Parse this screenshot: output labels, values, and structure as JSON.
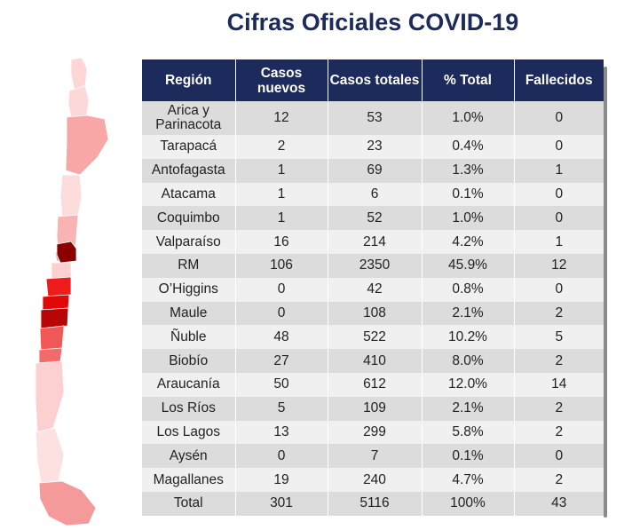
{
  "title": "Cifras Oficiales COVID-19",
  "chart_data": {
    "type": "table",
    "title": "Cifras Oficiales COVID-19",
    "columns": [
      "Región",
      "Casos nuevos",
      "Casos totales",
      "% Total",
      "Fallecidos"
    ],
    "rows": [
      {
        "region": "Arica y Parinacota",
        "nuevos": "12",
        "totales": "53",
        "pct": "1.0%",
        "fallecidos": "0",
        "fill": "#fdd6d6"
      },
      {
        "region": "Tarapacá",
        "nuevos": "2",
        "totales": "23",
        "pct": "0.4%",
        "fallecidos": "0",
        "fill": "#fdd8d8"
      },
      {
        "region": "Antofagasta",
        "nuevos": "1",
        "totales": "69",
        "pct": "1.3%",
        "fallecidos": "1",
        "fill": "#f8a6a6"
      },
      {
        "region": "Atacama",
        "nuevos": "1",
        "totales": "6",
        "pct": "0.1%",
        "fallecidos": "0",
        "fill": "#fddcdc"
      },
      {
        "region": "Coquimbo",
        "nuevos": "1",
        "totales": "52",
        "pct": "1.0%",
        "fallecidos": "0",
        "fill": "#f9b3b3"
      },
      {
        "region": "Valparaíso",
        "nuevos": "16",
        "totales": "214",
        "pct": "4.2%",
        "fallecidos": "1",
        "fill": "#f6a0a0"
      },
      {
        "region": "RM",
        "nuevos": "106",
        "totales": "2350",
        "pct": "45.9%",
        "fallecidos": "12",
        "fill": "#8a0000"
      },
      {
        "region": "O’Higgins",
        "nuevos": "0",
        "totales": "42",
        "pct": "0.8%",
        "fallecidos": "0",
        "fill": "#fcd0d0"
      },
      {
        "region": "Maule",
        "nuevos": "0",
        "totales": "108",
        "pct": "2.1%",
        "fallecidos": "2",
        "fill": "#ef1c1c"
      },
      {
        "region": "Ñuble",
        "nuevos": "48",
        "totales": "522",
        "pct": "10.2%",
        "fallecidos": "5",
        "fill": "#e00808"
      },
      {
        "region": "Biobío",
        "nuevos": "27",
        "totales": "410",
        "pct": "8.0%",
        "fallecidos": "2",
        "fill": "#b80606"
      },
      {
        "region": "Araucanía",
        "nuevos": "50",
        "totales": "612",
        "pct": "12.0%",
        "fallecidos": "14",
        "fill": "#f05858"
      },
      {
        "region": "Los Ríos",
        "nuevos": "5",
        "totales": "109",
        "pct": "2.1%",
        "fallecidos": "2",
        "fill": "#f26a6a"
      },
      {
        "region": "Los Lagos",
        "nuevos": "13",
        "totales": "299",
        "pct": "5.8%",
        "fallecidos": "2",
        "fill": "#fcd0d0"
      },
      {
        "region": "Aysén",
        "nuevos": "0",
        "totales": "7",
        "pct": "0.1%",
        "fallecidos": "0",
        "fill": "#fde0e0"
      },
      {
        "region": "Magallanes",
        "nuevos": "19",
        "totales": "240",
        "pct": "4.7%",
        "fallecidos": "2",
        "fill": "#f49a9a"
      }
    ],
    "total": {
      "region": "Total",
      "nuevos": "301",
      "totales": "5116",
      "pct": "100%",
      "fallecidos": "43"
    }
  }
}
